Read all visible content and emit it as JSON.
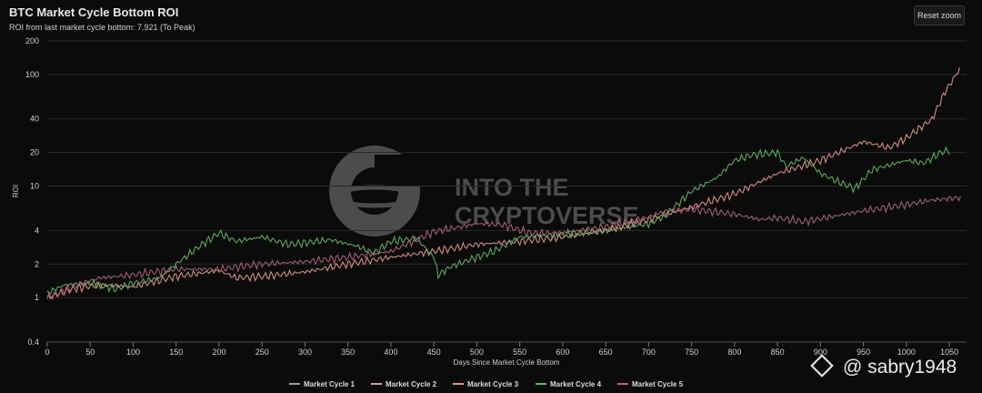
{
  "page": {
    "title": "BTC Market Cycle Bottom ROI",
    "subtitle": "ROI from last market cycle bottom: 7.921 (To Peak)",
    "reset_label": "Reset zoom",
    "logo_text": "INTO THE CRYPTOVERSE",
    "social_handle": "@ sabry1948"
  },
  "colors": {
    "background": "#0b0b0b",
    "grid": "#2a2a2a",
    "cycle1": "#9e9e9e",
    "cycle2": "#c7a3a3",
    "cycle3": "#e79a8c",
    "cycle4": "#66b866",
    "cycle5": "#b06680"
  },
  "chart_data": {
    "type": "line",
    "title": "BTC Market Cycle Bottom ROI",
    "xlabel": "Days Since Market Cycle Bottom",
    "ylabel": "ROI",
    "xlim": [
      0,
      1070
    ],
    "ylim": [
      0.4,
      200
    ],
    "y_scale": "log",
    "x_ticks": [
      0,
      50,
      100,
      150,
      200,
      250,
      300,
      350,
      400,
      450,
      500,
      550,
      600,
      650,
      700,
      750,
      800,
      850,
      900,
      950,
      1000,
      1050
    ],
    "y_ticks": [
      0.4,
      1,
      2,
      4,
      10,
      20,
      40,
      100,
      200
    ],
    "grid": true,
    "legend_position": "bottom",
    "series": [
      {
        "name": "Market Cycle 1",
        "color": "#9e9e9e",
        "points": []
      },
      {
        "name": "Market Cycle 2",
        "color": "#c7a3a3",
        "points": []
      },
      {
        "name": "Market Cycle 3",
        "color": "#e79a8c",
        "points": [
          [
            0,
            1.0
          ],
          [
            30,
            1.2
          ],
          [
            60,
            1.3
          ],
          [
            100,
            1.25
          ],
          [
            150,
            1.55
          ],
          [
            200,
            1.75
          ],
          [
            220,
            1.5
          ],
          [
            250,
            1.55
          ],
          [
            300,
            1.7
          ],
          [
            350,
            2.0
          ],
          [
            400,
            2.3
          ],
          [
            450,
            2.6
          ],
          [
            500,
            3.0
          ],
          [
            550,
            3.2
          ],
          [
            600,
            3.5
          ],
          [
            650,
            4.0
          ],
          [
            700,
            5.0
          ],
          [
            750,
            6.5
          ],
          [
            800,
            8.5
          ],
          [
            850,
            13
          ],
          [
            900,
            17
          ],
          [
            950,
            25
          ],
          [
            980,
            22
          ],
          [
            1000,
            27
          ],
          [
            1030,
            40
          ],
          [
            1045,
            70
          ],
          [
            1062,
            112
          ]
        ]
      },
      {
        "name": "Market Cycle 4",
        "color": "#66b866",
        "points": [
          [
            0,
            1.1
          ],
          [
            20,
            1.3
          ],
          [
            50,
            1.35
          ],
          [
            80,
            1.2
          ],
          [
            100,
            1.35
          ],
          [
            130,
            1.5
          ],
          [
            150,
            2.0
          ],
          [
            180,
            3.0
          ],
          [
            200,
            3.8
          ],
          [
            220,
            3.2
          ],
          [
            250,
            3.5
          ],
          [
            280,
            3.0
          ],
          [
            300,
            3.1
          ],
          [
            330,
            3.3
          ],
          [
            360,
            2.9
          ],
          [
            380,
            2.5
          ],
          [
            400,
            3.2
          ],
          [
            430,
            3.4
          ],
          [
            450,
            2.3
          ],
          [
            455,
            1.6
          ],
          [
            470,
            1.9
          ],
          [
            500,
            2.3
          ],
          [
            520,
            2.6
          ],
          [
            550,
            3.5
          ],
          [
            600,
            3.7
          ],
          [
            650,
            4.0
          ],
          [
            700,
            4.6
          ],
          [
            720,
            5.5
          ],
          [
            750,
            9.0
          ],
          [
            780,
            12
          ],
          [
            800,
            17
          ],
          [
            820,
            19
          ],
          [
            850,
            20
          ],
          [
            860,
            15
          ],
          [
            880,
            18
          ],
          [
            900,
            13
          ],
          [
            920,
            11
          ],
          [
            940,
            9.5
          ],
          [
            960,
            14
          ],
          [
            1000,
            17
          ],
          [
            1020,
            16
          ],
          [
            1040,
            20
          ],
          [
            1050,
            21
          ]
        ]
      },
      {
        "name": "Market Cycle 5",
        "color": "#b06680",
        "points": [
          [
            0,
            1.0
          ],
          [
            30,
            1.25
          ],
          [
            60,
            1.5
          ],
          [
            100,
            1.6
          ],
          [
            150,
            1.8
          ],
          [
            200,
            1.8
          ],
          [
            250,
            2.0
          ],
          [
            300,
            2.1
          ],
          [
            350,
            2.3
          ],
          [
            400,
            2.6
          ],
          [
            430,
            3.3
          ],
          [
            450,
            3.9
          ],
          [
            480,
            4.3
          ],
          [
            500,
            4.6
          ],
          [
            530,
            4.5
          ],
          [
            560,
            3.8
          ],
          [
            600,
            3.8
          ],
          [
            650,
            4.3
          ],
          [
            700,
            5.3
          ],
          [
            720,
            6.0
          ],
          [
            750,
            6.2
          ],
          [
            800,
            5.6
          ],
          [
            830,
            5.0
          ],
          [
            850,
            5.2
          ],
          [
            880,
            4.8
          ],
          [
            900,
            5.1
          ],
          [
            950,
            6.0
          ],
          [
            1000,
            6.8
          ],
          [
            1030,
            7.5
          ],
          [
            1063,
            7.9
          ]
        ]
      }
    ]
  }
}
